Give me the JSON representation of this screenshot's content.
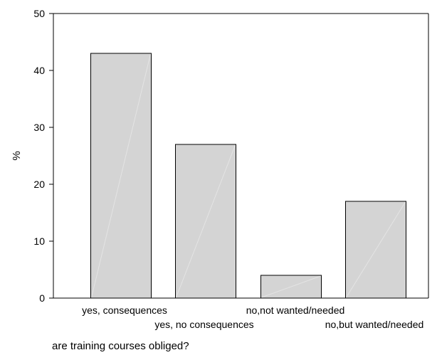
{
  "chart_data": {
    "type": "bar",
    "categories": [
      "yes, consequences",
      "yes, no consequences",
      "no,not wanted/needed",
      "no,but wanted/needed"
    ],
    "values": [
      43,
      27,
      4,
      17
    ],
    "title": "",
    "xlabel": "are training courses obliged?",
    "ylabel": "%",
    "ylim": [
      0,
      50
    ],
    "yticks": [
      0,
      10,
      20,
      30,
      40,
      50
    ],
    "grid": false,
    "colors": {
      "bar_fill": "#d4d4d4",
      "bar_stroke": "#000000",
      "axis": "#000000"
    }
  }
}
